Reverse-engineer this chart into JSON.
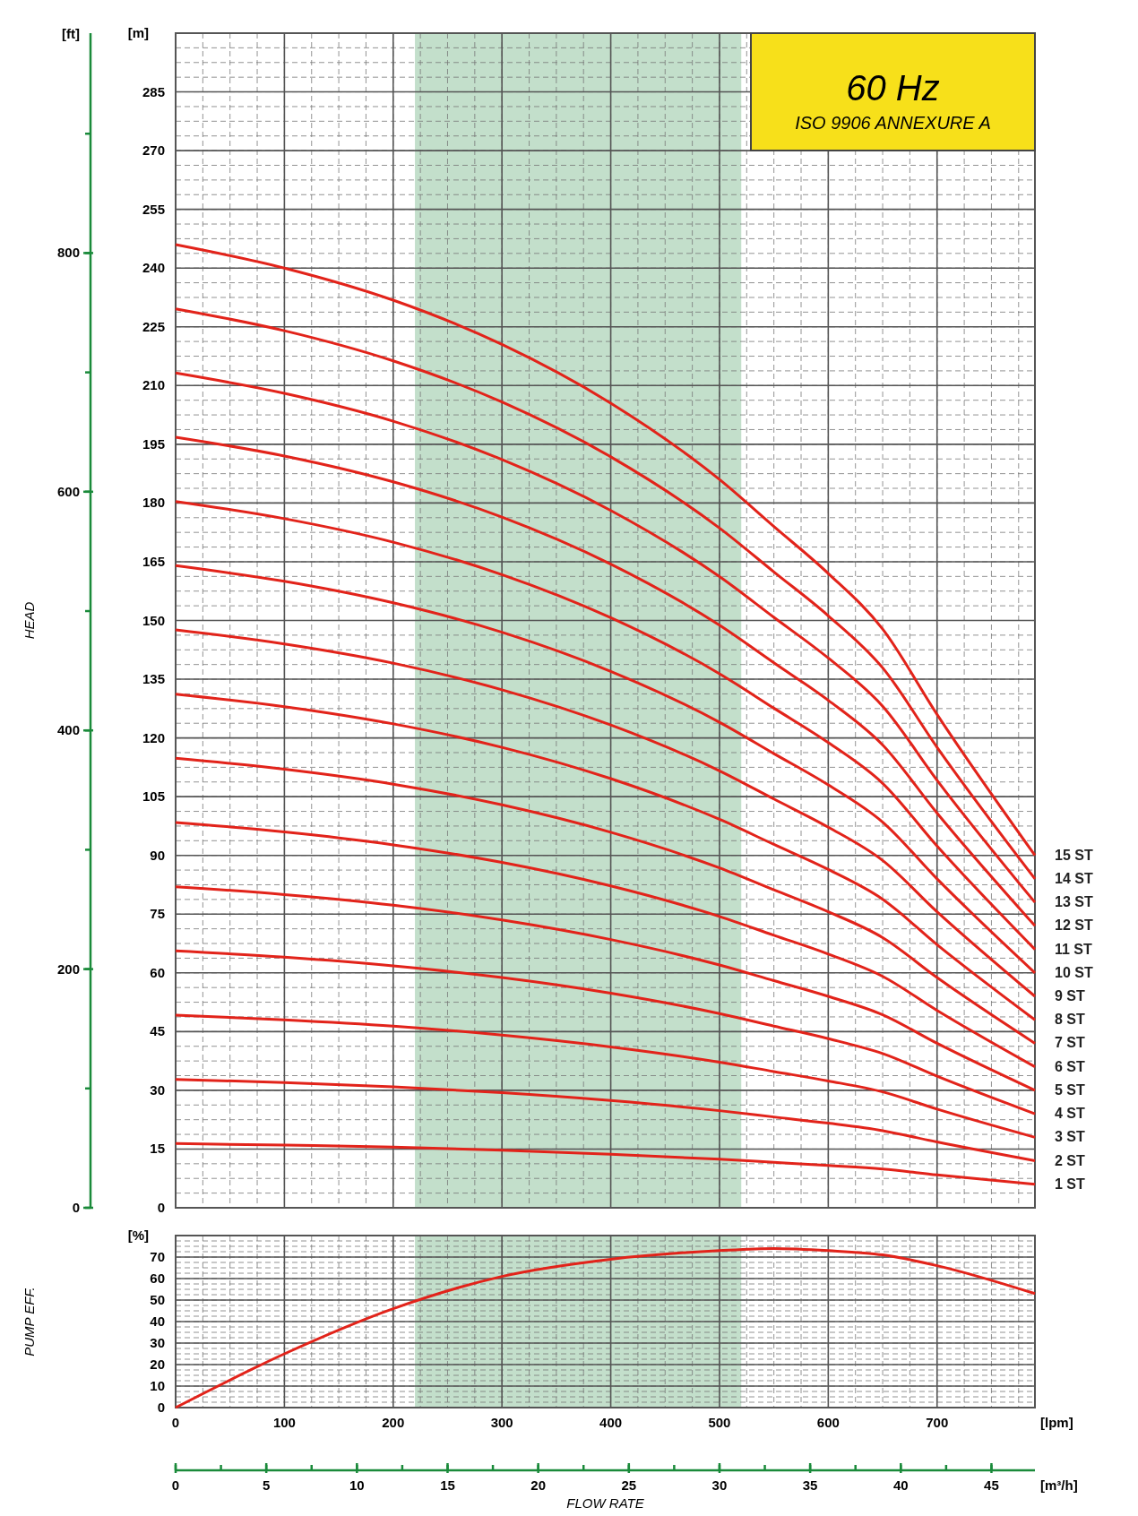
{
  "chart_data": [
    {
      "type": "line",
      "title": "60 Hz",
      "subtitle": "ISO 9906 ANNEXURE A",
      "ylabel": "[m]",
      "y2label": "[ft]",
      "annotations": [
        "HEAD"
      ],
      "x": [
        0,
        100,
        200,
        300,
        400,
        500,
        550,
        600,
        650,
        700,
        790
      ],
      "xlim": [
        0,
        790
      ],
      "xticks": [
        0,
        100,
        200,
        300,
        400,
        500,
        600,
        700
      ],
      "tick_labels": "y",
      "ylim": [
        0,
        300
      ],
      "yticks": [
        0,
        15,
        30,
        45,
        60,
        75,
        90,
        105,
        120,
        135,
        150,
        165,
        180,
        195,
        210,
        225,
        240,
        255,
        270,
        285
      ],
      "y2lim": [
        0,
        984.25
      ],
      "y2ticks": [
        0,
        200,
        400,
        600,
        800
      ],
      "grid": true,
      "legend": false,
      "marker": "none",
      "line_style": "solid",
      "bands": [
        {
          "axis": "x",
          "from": 220,
          "to": 520,
          "color": "#c3dfcb"
        }
      ],
      "series": [
        {
          "name": "15 ST",
          "color": "#e2231a",
          "values": [
            246,
            240,
            231.8,
            220.5,
            205.5,
            186,
            174,
            162,
            147.8,
            126,
            90
          ]
        },
        {
          "name": "14 ST",
          "color": "#e2231a",
          "values": [
            229.6,
            224,
            216.3,
            205.8,
            191.8,
            173.6,
            162.4,
            151.2,
            137.9,
            117.6,
            84
          ]
        },
        {
          "name": "13 ST",
          "color": "#e2231a",
          "values": [
            213.2,
            208,
            200.9,
            191.1,
            178.1,
            161.2,
            150.8,
            140.4,
            128.1,
            109.2,
            78
          ]
        },
        {
          "name": "12 ST",
          "color": "#e2231a",
          "values": [
            196.8,
            192,
            185.4,
            176.4,
            164.4,
            148.8,
            139.2,
            129.6,
            118.2,
            100.8,
            72
          ]
        },
        {
          "name": "11 ST",
          "color": "#e2231a",
          "values": [
            180.4,
            176,
            170,
            161.7,
            150.7,
            136.4,
            127.6,
            118.8,
            108.4,
            92.4,
            66
          ]
        },
        {
          "name": "10 ST",
          "color": "#e2231a",
          "values": [
            164,
            160,
            154.5,
            147,
            137,
            124,
            116,
            108,
            98.5,
            84,
            60
          ]
        },
        {
          "name": "9 ST",
          "color": "#e2231a",
          "values": [
            147.6,
            144,
            139.1,
            132.3,
            123.3,
            111.6,
            104.4,
            97.2,
            88.7,
            75.6,
            54
          ]
        },
        {
          "name": "8 ST",
          "color": "#e2231a",
          "values": [
            131.2,
            128,
            123.6,
            117.6,
            109.6,
            99.2,
            92.8,
            86.4,
            78.8,
            67.2,
            48
          ]
        },
        {
          "name": "7 ST",
          "color": "#e2231a",
          "values": [
            114.8,
            112,
            108.2,
            102.9,
            95.9,
            86.8,
            81.2,
            75.6,
            69,
            58.8,
            42
          ]
        },
        {
          "name": "6 ST",
          "color": "#e2231a",
          "values": [
            98.4,
            96,
            92.7,
            88.2,
            82.2,
            74.4,
            69.6,
            64.8,
            59.1,
            50.4,
            36
          ]
        },
        {
          "name": "5 ST",
          "color": "#e2231a",
          "values": [
            82,
            80,
            77.3,
            73.5,
            68.5,
            62,
            58,
            54,
            49.3,
            42,
            30
          ]
        },
        {
          "name": "4 ST",
          "color": "#e2231a",
          "values": [
            65.6,
            64,
            61.8,
            58.8,
            54.8,
            49.6,
            46.4,
            43.2,
            39.4,
            33.6,
            24
          ]
        },
        {
          "name": "3 ST",
          "color": "#e2231a",
          "values": [
            49.2,
            48,
            46.4,
            44.1,
            41.1,
            37.2,
            34.8,
            32.4,
            29.6,
            25.2,
            18
          ]
        },
        {
          "name": "2 ST",
          "color": "#e2231a",
          "values": [
            32.8,
            32,
            30.9,
            29.4,
            27.4,
            24.8,
            23.2,
            21.6,
            19.7,
            16.8,
            12
          ]
        },
        {
          "name": "1 ST",
          "color": "#e2231a",
          "values": [
            16.4,
            16,
            15.5,
            14.7,
            13.7,
            12.4,
            11.6,
            10.8,
            9.9,
            8.4,
            6
          ]
        }
      ]
    },
    {
      "type": "line",
      "ylabel": "[%]",
      "xlabel": "FLOW RATE",
      "x2label": "[m³/h]",
      "annotations": [
        "PUMP EFF.",
        "[lpm]"
      ],
      "x": [
        0,
        100,
        200,
        300,
        400,
        500,
        550,
        600,
        650,
        700,
        790
      ],
      "xlim": [
        0,
        790
      ],
      "xticks": [
        0,
        100,
        200,
        300,
        400,
        500,
        600,
        700
      ],
      "ylim": [
        0,
        80
      ],
      "yticks": [
        0,
        10,
        20,
        30,
        40,
        50,
        60,
        70
      ],
      "x2lim": [
        0,
        47.4
      ],
      "x2ticks": [
        0,
        5,
        10,
        15,
        20,
        25,
        30,
        35,
        40,
        45
      ],
      "grid": true,
      "legend": false,
      "marker": "none",
      "line_style": "solid",
      "bands": [
        {
          "axis": "x",
          "from": 220,
          "to": 520,
          "color": "#c3dfcb"
        }
      ],
      "series": [
        {
          "color": "#e2231a",
          "values": [
            0,
            25,
            46,
            61,
            69,
            73,
            74,
            73,
            71,
            66,
            53
          ]
        }
      ]
    }
  ]
}
